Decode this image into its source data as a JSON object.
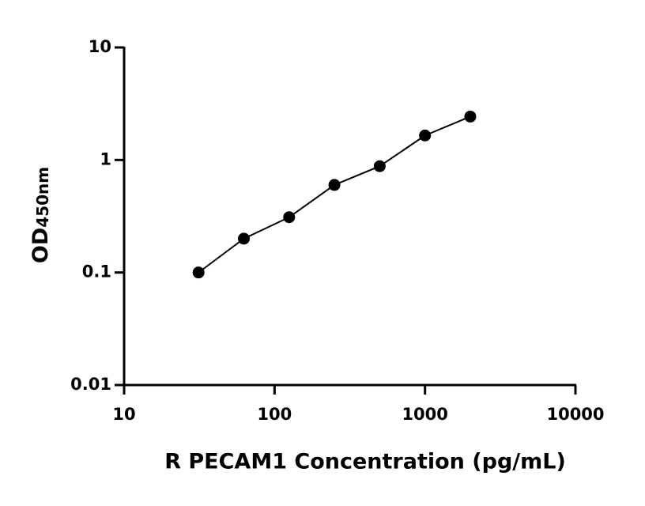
{
  "chart_data": {
    "type": "scatter",
    "xlabel": "R PECAM1 Concentration (pg/mL)",
    "ylabel": "OD",
    "ylabel_subscript": "450nm",
    "x": [
      31.25,
      62.5,
      125,
      250,
      500,
      1000,
      2000
    ],
    "series": [
      {
        "color": "#000000",
        "values": [
          0.1,
          0.2,
          0.31,
          0.6,
          0.88,
          1.65,
          2.43
        ]
      }
    ],
    "xlim": [
      10,
      10000
    ],
    "xticks": [
      10,
      100,
      1000,
      10000
    ],
    "ylim": [
      0.01,
      10
    ],
    "yticks": [
      0.01,
      0.1,
      1,
      10
    ],
    "xscale": "log",
    "yscale": "log",
    "line": true
  }
}
